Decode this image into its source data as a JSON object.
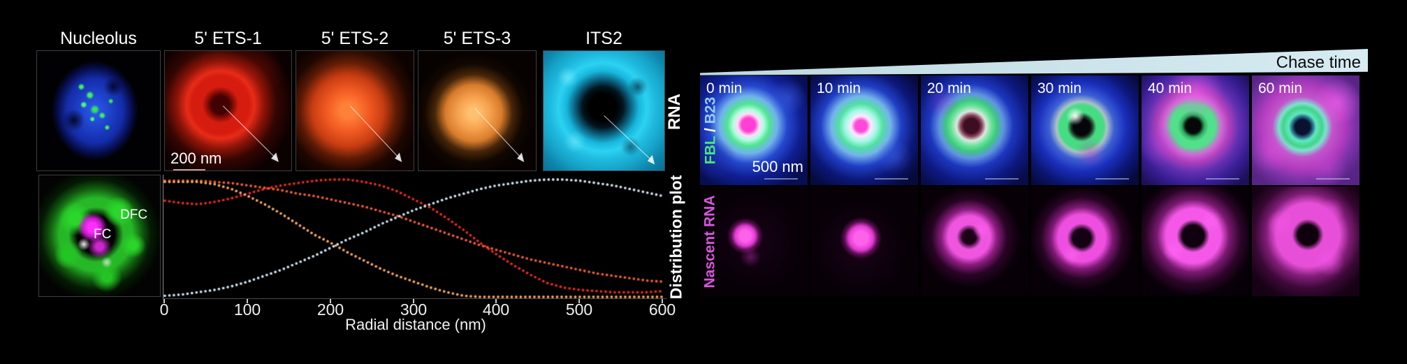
{
  "left_block": {
    "panel_titles": [
      "Nucleolus",
      "5' ETS-1",
      "5' ETS-2",
      "5' ETS-3",
      "ITS2"
    ],
    "row_label": "RNA",
    "scale_bar_label": "200 nm",
    "inset_labels": {
      "dfc": "DFC",
      "fc": "FC"
    },
    "plot_row_label": "Distribution plot"
  },
  "right_block": {
    "chase_arrow_label": "Chase time",
    "timepoints": [
      "0 min",
      "10 min",
      "20 min",
      "30 min",
      "40 min",
      "60 min"
    ],
    "row1_label": {
      "fbl": "FBL",
      "separator": " / ",
      "b23": "B23"
    },
    "row2_label": "Nascent RNA",
    "scale_bar_label": "500 nm"
  },
  "colors": {
    "ets1_curve": "#e8271d",
    "ets2_curve": "#ef5b2b",
    "ets3_curve": "#f3a45b",
    "its2_curve": "#c9dde9",
    "fbl_label": "#4ae47b",
    "b23_label": "#96cce8",
    "nascent_label": "#d957dd",
    "chase_wedge": "#cfe4ec"
  },
  "chart_data": {
    "type": "line",
    "style": "dotted",
    "xlabel": "Radial distance (nm)",
    "ylabel": "Distribution plot",
    "xlim": [
      0,
      600
    ],
    "ylim": [
      0,
      1
    ],
    "grid": false,
    "legend": false,
    "xticks": [
      "0",
      "100",
      "200",
      "300",
      "400",
      "500",
      "600"
    ],
    "x": [
      0,
      20,
      40,
      60,
      80,
      100,
      120,
      140,
      160,
      180,
      200,
      220,
      240,
      260,
      280,
      300,
      320,
      340,
      360,
      380,
      400,
      420,
      440,
      460,
      480,
      500,
      520,
      540,
      560,
      580,
      600
    ],
    "series": [
      {
        "name": "5' ETS-1",
        "color": "#e8271d",
        "values": [
          0.82,
          0.8,
          0.79,
          0.81,
          0.84,
          0.88,
          0.92,
          0.95,
          0.97,
          0.99,
          1.0,
          1.0,
          0.98,
          0.95,
          0.9,
          0.83,
          0.76,
          0.67,
          0.57,
          0.46,
          0.36,
          0.27,
          0.19,
          0.12,
          0.08,
          0.06,
          0.05,
          0.04,
          0.04,
          0.04,
          0.05
        ]
      },
      {
        "name": "5' ETS-2",
        "color": "#ef5b2b",
        "values": [
          0.99,
          0.99,
          0.99,
          0.98,
          0.97,
          0.95,
          0.93,
          0.91,
          0.88,
          0.86,
          0.83,
          0.8,
          0.77,
          0.73,
          0.69,
          0.64,
          0.59,
          0.54,
          0.49,
          0.44,
          0.4,
          0.36,
          0.32,
          0.29,
          0.26,
          0.23,
          0.2,
          0.18,
          0.16,
          0.14,
          0.13
        ]
      },
      {
        "name": "5' ETS-3",
        "color": "#f3a45b",
        "values": [
          0.98,
          0.98,
          0.98,
          0.96,
          0.92,
          0.86,
          0.79,
          0.71,
          0.62,
          0.53,
          0.46,
          0.38,
          0.31,
          0.24,
          0.18,
          0.13,
          0.08,
          0.04,
          0.01,
          0.0,
          0.0,
          0.0,
          0.0,
          0.0,
          0.0,
          0.0,
          0.0,
          0.0,
          0.0,
          0.0,
          0.0
        ]
      },
      {
        "name": "ITS2",
        "color": "#c9dde9",
        "values": [
          0.01,
          0.02,
          0.04,
          0.06,
          0.09,
          0.13,
          0.18,
          0.23,
          0.29,
          0.35,
          0.42,
          0.49,
          0.55,
          0.62,
          0.68,
          0.74,
          0.79,
          0.84,
          0.88,
          0.92,
          0.95,
          0.97,
          0.99,
          1.0,
          1.0,
          0.99,
          0.97,
          0.95,
          0.92,
          0.89,
          0.86
        ]
      }
    ]
  }
}
